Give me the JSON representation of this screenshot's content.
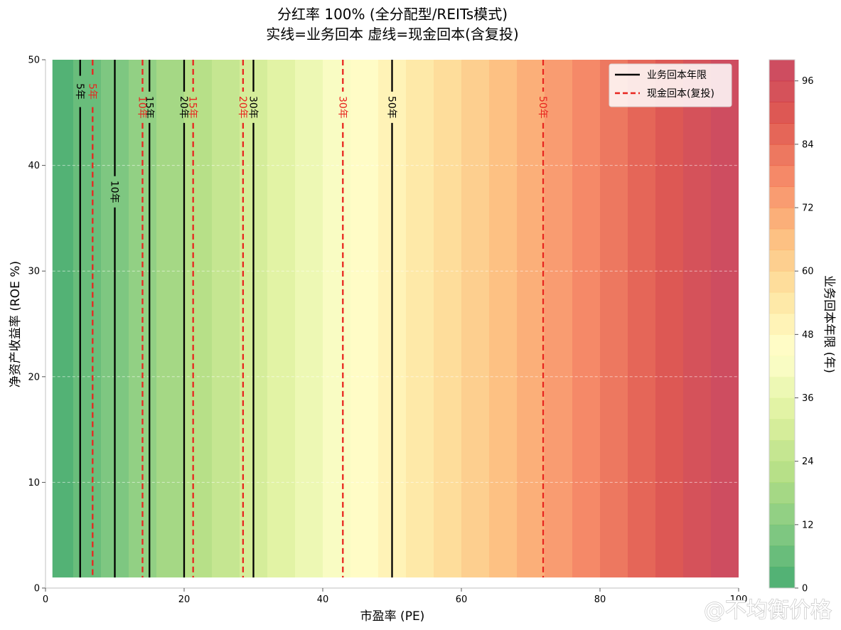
{
  "chart_data": {
    "type": "heatmap",
    "title": "分红率 100% (全分配型/REITs模式)",
    "subtitle": "实线=业务回本  虚线=现金回本(含复投)",
    "xlabel": "市盈率 (PE)",
    "ylabel": "净资产收益率 (ROE %)",
    "xlim": [
      0,
      100
    ],
    "ylim": [
      0,
      50
    ],
    "x_ticks": [
      "0",
      "20",
      "40",
      "60",
      "80",
      "100"
    ],
    "y_ticks": [
      "0",
      "10",
      "20",
      "30",
      "40",
      "50"
    ],
    "grid": "y-dashed",
    "heatmap": {
      "x_range": [
        1,
        100
      ],
      "y_range": [
        1,
        50
      ],
      "levels": [
        0,
        4,
        8,
        12,
        16,
        20,
        24,
        28,
        32,
        36,
        40,
        44,
        48,
        52,
        56,
        60,
        64,
        68,
        72,
        76,
        80,
        84,
        88,
        92,
        96,
        100
      ]
    },
    "colorbar": {
      "label": "业务回本年限 (年)",
      "range": [
        0,
        100
      ],
      "ticks": [
        "0",
        "12",
        "24",
        "36",
        "48",
        "60",
        "72",
        "84",
        "96"
      ]
    },
    "series": [
      {
        "name": "业务回本年限",
        "style": "solid",
        "color": "#000000",
        "contours": [
          {
            "x": 5,
            "label": "5年",
            "label_y": 47
          },
          {
            "x": 10,
            "label": "10年",
            "label_y": 37.5
          },
          {
            "x": 15,
            "label": "15年",
            "label_y": 45.5
          },
          {
            "x": 20,
            "label": "20年",
            "label_y": 45.5
          },
          {
            "x": 30,
            "label": "30年",
            "label_y": 45.5
          },
          {
            "x": 50,
            "label": "50年",
            "label_y": 45.5
          }
        ]
      },
      {
        "name": "现金回本(复投)",
        "style": "dashed",
        "color": "#e8251f",
        "contours": [
          {
            "x": 6.8,
            "label": "5年",
            "label_y": 47
          },
          {
            "x": 14,
            "label": "10年",
            "label_y": 45.5
          },
          {
            "x": 21.3,
            "label": "15年",
            "label_y": 45.5
          },
          {
            "x": 28.5,
            "label": "20年",
            "label_y": 45.5
          },
          {
            "x": 42.9,
            "label": "30年",
            "label_y": 45.5
          },
          {
            "x": 71.8,
            "label": "50年",
            "label_y": 45.5
          }
        ]
      }
    ],
    "legend": "top-right"
  },
  "watermark": "@不均衡价格",
  "colors": {
    "gradient": [
      "#1a9850",
      "#66bd63",
      "#a6d96a",
      "#d9ef8b",
      "#ffffbf",
      "#fee08b",
      "#fdae61",
      "#f46d43",
      "#d73027",
      "#bd1c3c"
    ]
  }
}
